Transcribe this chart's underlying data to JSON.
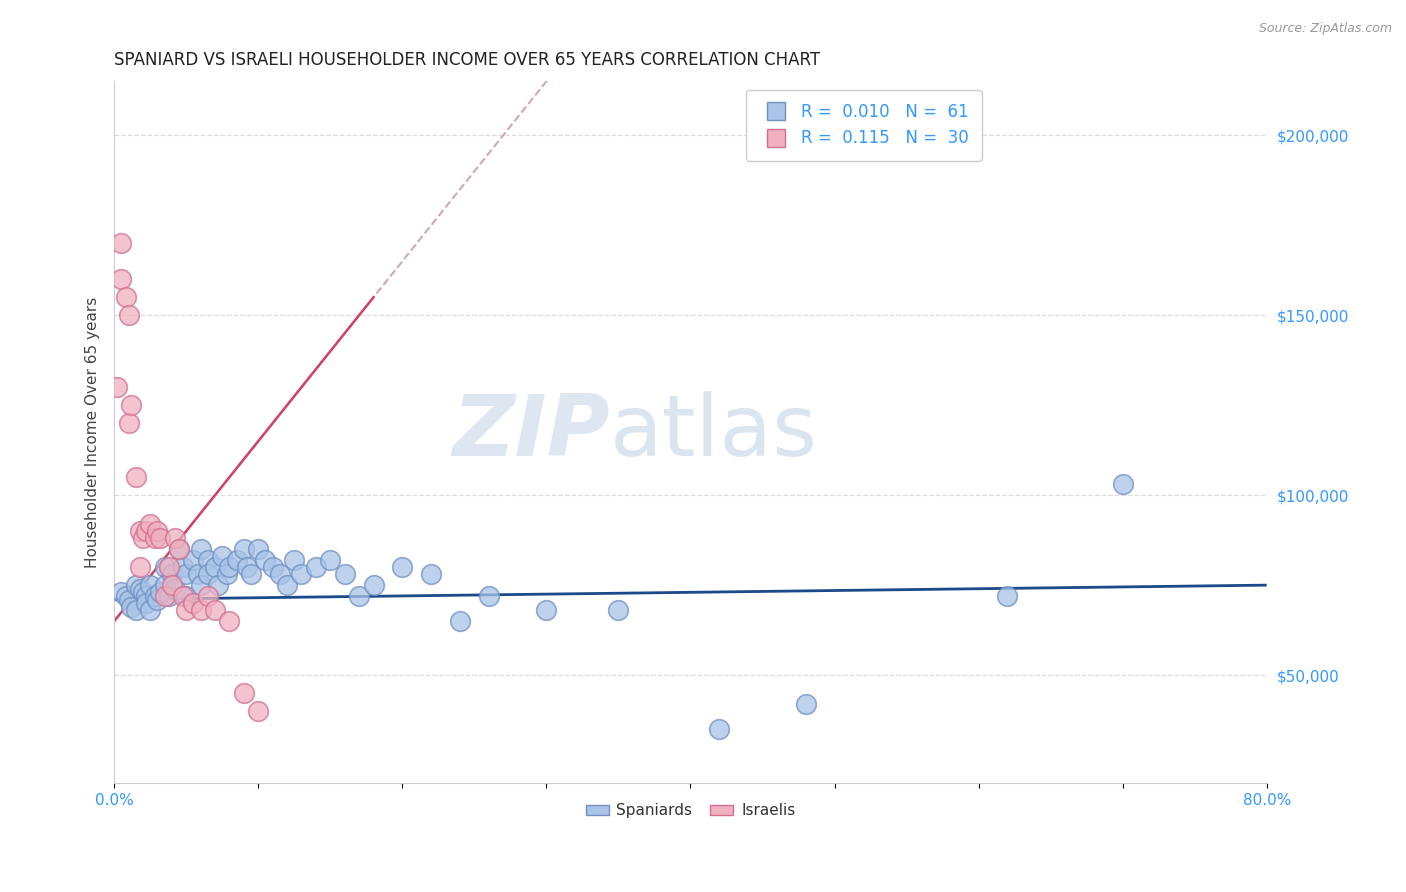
{
  "title": "SPANIARD VS ISRAELI HOUSEHOLDER INCOME OVER 65 YEARS CORRELATION CHART",
  "source_text": "Source: ZipAtlas.com",
  "ylabel": "Householder Income Over 65 years",
  "xlim": [
    0.0,
    0.8
  ],
  "ylim": [
    20000,
    215000
  ],
  "yticks": [
    50000,
    100000,
    150000,
    200000
  ],
  "yticklabels": [
    "$50,000",
    "$100,000",
    "$150,000",
    "$200,000"
  ],
  "legend_r_blue": "0.010",
  "legend_n_blue": "61",
  "legend_r_pink": "0.115",
  "legend_n_pink": "30",
  "watermark_zip": "ZIP",
  "watermark_atlas": "atlas",
  "blue_color": "#a8c4e8",
  "pink_color": "#f0b0c0",
  "blue_edge": "#7090c0",
  "pink_edge": "#d07090",
  "trend_blue_color": "#1a4a8a",
  "trend_pink_color": "#cc4466",
  "trend_pink_dash_color": "#ccaabb",
  "background_color": "#ffffff",
  "grid_color": "#dddddd",
  "blue_x": [
    0.005,
    0.008,
    0.01,
    0.012,
    0.015,
    0.015,
    0.018,
    0.02,
    0.022,
    0.022,
    0.025,
    0.025,
    0.028,
    0.03,
    0.032,
    0.035,
    0.035,
    0.038,
    0.04,
    0.042,
    0.045,
    0.048,
    0.05,
    0.05,
    0.055,
    0.058,
    0.06,
    0.06,
    0.065,
    0.065,
    0.07,
    0.072,
    0.075,
    0.078,
    0.08,
    0.085,
    0.09,
    0.092,
    0.095,
    0.1,
    0.105,
    0.11,
    0.115,
    0.12,
    0.125,
    0.13,
    0.14,
    0.15,
    0.16,
    0.17,
    0.18,
    0.2,
    0.22,
    0.24,
    0.26,
    0.3,
    0.35,
    0.42,
    0.48,
    0.62,
    0.7
  ],
  "blue_y": [
    73000,
    72000,
    71000,
    69000,
    75000,
    68000,
    74000,
    73000,
    72000,
    70000,
    68000,
    75000,
    72000,
    71000,
    73000,
    80000,
    75000,
    72000,
    78000,
    74000,
    85000,
    80000,
    78000,
    72000,
    82000,
    78000,
    85000,
    75000,
    82000,
    78000,
    80000,
    75000,
    83000,
    78000,
    80000,
    82000,
    85000,
    80000,
    78000,
    85000,
    82000,
    80000,
    78000,
    75000,
    82000,
    78000,
    80000,
    82000,
    78000,
    72000,
    75000,
    80000,
    78000,
    65000,
    72000,
    68000,
    68000,
    35000,
    42000,
    72000,
    103000
  ],
  "pink_x": [
    0.002,
    0.005,
    0.005,
    0.008,
    0.01,
    0.01,
    0.012,
    0.015,
    0.018,
    0.018,
    0.02,
    0.022,
    0.025,
    0.028,
    0.03,
    0.032,
    0.035,
    0.038,
    0.04,
    0.042,
    0.045,
    0.048,
    0.05,
    0.055,
    0.06,
    0.065,
    0.07,
    0.08,
    0.09,
    0.1
  ],
  "pink_y": [
    130000,
    160000,
    170000,
    155000,
    150000,
    120000,
    125000,
    105000,
    90000,
    80000,
    88000,
    90000,
    92000,
    88000,
    90000,
    88000,
    72000,
    80000,
    75000,
    88000,
    85000,
    72000,
    68000,
    70000,
    68000,
    72000,
    68000,
    65000,
    45000,
    40000
  ],
  "pink_trend_slope": 500000,
  "pink_trend_intercept": 65000,
  "blue_trend_slope": 5000,
  "blue_trend_intercept": 71000
}
